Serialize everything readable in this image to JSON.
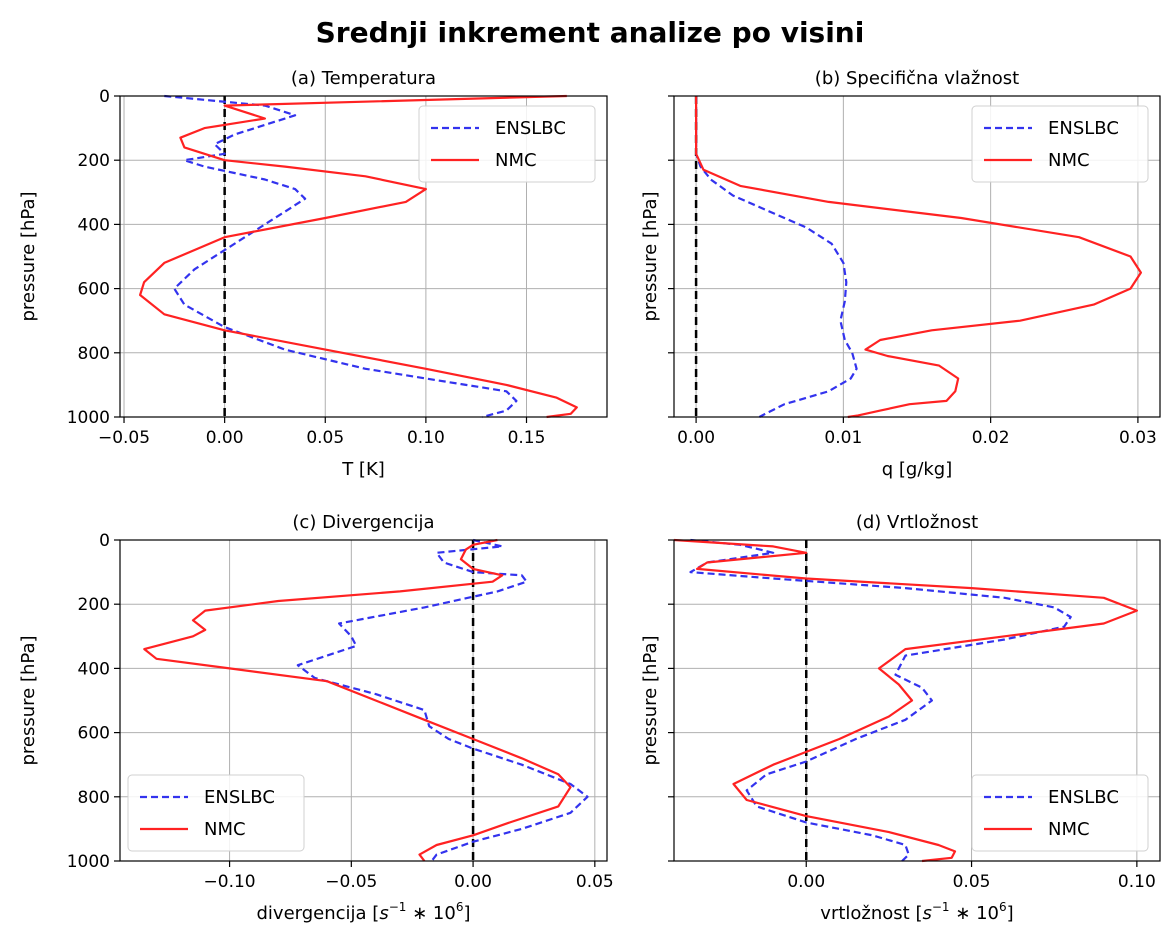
{
  "title": "Srednji inkrement analize po visini",
  "colors": {
    "ENSLBC": "#3333ee",
    "NMC": "#ff2222"
  },
  "chart_data": [
    {
      "type": "line",
      "title": "(a) Temperatura",
      "xlabel": "T [K]",
      "ylabel": "pressure [hPa]",
      "xlim": [
        -0.052,
        0.19
      ],
      "ylim": [
        1000,
        0
      ],
      "y_inverted": true,
      "xticks": [
        -0.05,
        0.0,
        0.05,
        0.1,
        0.15
      ],
      "xtick_labels": [
        "−0.05",
        "0.00",
        "0.05",
        "0.10",
        "0.15"
      ],
      "yticks": [
        0,
        200,
        400,
        600,
        800,
        1000
      ],
      "ytick_labels": [
        "0",
        "200",
        "400",
        "600",
        "800",
        "1000"
      ],
      "show_ytick_labels": true,
      "grid": true,
      "legend": "upper right",
      "zero_line": true,
      "series": [
        {
          "name": "ENSLBC",
          "style": "dashed",
          "x": [
            -0.03,
            0.02,
            0.035,
            0.02,
            0.005,
            -0.005,
            0.0,
            -0.02,
            -0.01,
            0.02,
            0.035,
            0.04,
            0.03,
            0.015,
            0.0,
            -0.015,
            -0.025,
            -0.02,
            0.0,
            0.03,
            0.07,
            0.11,
            0.14,
            0.145,
            0.14,
            0.128
          ],
          "y": [
            0,
            30,
            60,
            90,
            120,
            150,
            180,
            200,
            220,
            260,
            290,
            320,
            360,
            420,
            480,
            540,
            600,
            650,
            720,
            790,
            850,
            890,
            920,
            950,
            980,
            1000
          ]
        },
        {
          "name": "NMC",
          "style": "solid",
          "x": [
            0.17,
            0.0,
            0.02,
            -0.01,
            -0.022,
            -0.02,
            0.0,
            0.03,
            0.07,
            0.1,
            0.09,
            0.05,
            0.0,
            -0.03,
            -0.04,
            -0.042,
            -0.03,
            0.0,
            0.05,
            0.1,
            0.14,
            0.165,
            0.175,
            0.172,
            0.16
          ],
          "y": [
            0,
            30,
            70,
            100,
            130,
            160,
            200,
            220,
            250,
            290,
            330,
            380,
            440,
            520,
            580,
            620,
            680,
            730,
            790,
            850,
            900,
            940,
            970,
            990,
            1000
          ]
        }
      ]
    },
    {
      "type": "line",
      "title": "(b) Specifična vlažnost",
      "xlabel": "q [g/kg]",
      "ylabel": "pressure [hPa]",
      "xlim": [
        -0.0015,
        0.0315
      ],
      "ylim": [
        1000,
        0
      ],
      "y_inverted": true,
      "xticks": [
        0.0,
        0.01,
        0.02,
        0.03
      ],
      "xtick_labels": [
        "0.00",
        "0.01",
        "0.02",
        "0.03"
      ],
      "yticks": [
        0,
        200,
        400,
        600,
        800,
        1000
      ],
      "ytick_labels": [
        "0",
        "200",
        "400",
        "600",
        "800",
        "1000"
      ],
      "show_ytick_labels": false,
      "grid": true,
      "legend": "upper right",
      "zero_line": true,
      "series": [
        {
          "name": "ENSLBC",
          "style": "dashed",
          "x": [
            0.0,
            0.0,
            0.0003,
            0.001,
            0.0025,
            0.005,
            0.0075,
            0.0092,
            0.01,
            0.0102,
            0.0101,
            0.0098,
            0.0101,
            0.0106,
            0.0109,
            0.0105,
            0.009,
            0.006,
            0.0047,
            0.0043
          ],
          "y": [
            0,
            180,
            220,
            260,
            310,
            360,
            410,
            460,
            520,
            580,
            640,
            700,
            760,
            800,
            850,
            880,
            920,
            960,
            990,
            1000
          ]
        },
        {
          "name": "NMC",
          "style": "solid",
          "x": [
            0.0,
            0.0,
            0.0005,
            0.003,
            0.009,
            0.018,
            0.026,
            0.0295,
            0.0302,
            0.0295,
            0.027,
            0.022,
            0.016,
            0.0125,
            0.0115,
            0.013,
            0.0165,
            0.0178,
            0.0176,
            0.017,
            0.0145,
            0.0125,
            0.011,
            0.0103
          ],
          "y": [
            0,
            180,
            230,
            280,
            330,
            380,
            440,
            500,
            550,
            600,
            650,
            700,
            730,
            760,
            790,
            810,
            840,
            880,
            920,
            950,
            960,
            980,
            995,
            1000
          ]
        }
      ]
    },
    {
      "type": "line",
      "title": "(c) Divergencija",
      "xlabel": "divergencija [s⁻¹ * 10⁶]",
      "ylabel": "pressure [hPa]",
      "xlim": [
        -0.145,
        0.055
      ],
      "ylim": [
        1000,
        0
      ],
      "y_inverted": true,
      "xticks": [
        -0.1,
        -0.05,
        0.0,
        0.05
      ],
      "xtick_labels": [
        "−0.10",
        "−0.05",
        "0.00",
        "0.05"
      ],
      "yticks": [
        0,
        200,
        400,
        600,
        800,
        1000
      ],
      "ytick_labels": [
        "0",
        "200",
        "400",
        "600",
        "800",
        "1000"
      ],
      "show_ytick_labels": true,
      "grid": true,
      "legend": "lower left",
      "zero_line": true,
      "series": [
        {
          "name": "ENSLBC",
          "style": "dashed",
          "x": [
            0.0,
            0.012,
            -0.015,
            -0.012,
            0.0,
            0.02,
            0.022,
            0.01,
            -0.02,
            -0.055,
            -0.05,
            -0.048,
            -0.06,
            -0.072,
            -0.065,
            -0.04,
            -0.02,
            -0.018,
            -0.01,
            0.0,
            0.02,
            0.04,
            0.047,
            0.04,
            0.02,
            0.0,
            -0.015,
            -0.017
          ],
          "y": [
            0,
            20,
            40,
            70,
            100,
            110,
            130,
            160,
            210,
            260,
            300,
            330,
            360,
            390,
            430,
            480,
            530,
            580,
            620,
            650,
            700,
            760,
            800,
            850,
            900,
            940,
            980,
            1000
          ]
        },
        {
          "name": "NMC",
          "style": "solid",
          "x": [
            0.01,
            0.0,
            -0.003,
            -0.005,
            0.0,
            0.012,
            0.008,
            -0.03,
            -0.08,
            -0.11,
            -0.115,
            -0.11,
            -0.115,
            -0.125,
            -0.135,
            -0.13,
            -0.1,
            -0.06,
            -0.04,
            -0.02,
            0.0,
            0.02,
            0.035,
            0.04,
            0.035,
            0.015,
            0.0,
            -0.015,
            -0.022,
            -0.02
          ],
          "y": [
            0,
            15,
            30,
            60,
            90,
            110,
            130,
            160,
            190,
            220,
            250,
            280,
            300,
            320,
            340,
            370,
            400,
            440,
            500,
            560,
            620,
            680,
            730,
            770,
            830,
            880,
            920,
            950,
            980,
            1000
          ]
        }
      ]
    },
    {
      "type": "line",
      "title": "(d) Vrtložnost",
      "xlabel": "vrtložnost [s⁻¹ * 10⁶]",
      "ylabel": "pressure [hPa]",
      "xlim": [
        -0.04,
        0.107
      ],
      "ylim": [
        1000,
        0
      ],
      "y_inverted": true,
      "xticks": [
        0.0,
        0.05,
        0.1
      ],
      "xtick_labels": [
        "0.00",
        "0.05",
        "0.10"
      ],
      "yticks": [
        0,
        200,
        400,
        600,
        800,
        1000
      ],
      "ytick_labels": [
        "0",
        "200",
        "400",
        "600",
        "800",
        "1000"
      ],
      "show_ytick_labels": false,
      "grid": true,
      "legend": "lower right",
      "zero_line": true,
      "series": [
        {
          "name": "ENSLBC",
          "style": "dashed",
          "x": [
            -0.035,
            -0.02,
            -0.01,
            -0.03,
            -0.035,
            -0.01,
            0.03,
            0.06,
            0.075,
            0.08,
            0.078,
            0.06,
            0.03,
            0.027,
            0.035,
            0.038,
            0.03,
            0.015,
            0.0,
            -0.012,
            -0.018,
            -0.015,
            0.0,
            0.02,
            0.03,
            0.031,
            0.029
          ],
          "y": [
            0,
            15,
            40,
            70,
            100,
            120,
            150,
            180,
            210,
            240,
            270,
            310,
            360,
            420,
            460,
            500,
            560,
            620,
            690,
            730,
            780,
            830,
            880,
            920,
            950,
            980,
            1000
          ]
        },
        {
          "name": "NMC",
          "style": "solid",
          "x": [
            -0.04,
            -0.01,
            0.0,
            -0.03,
            -0.033,
            0.0,
            0.05,
            0.09,
            0.1,
            0.09,
            0.06,
            0.03,
            0.022,
            0.028,
            0.032,
            0.025,
            0.01,
            -0.01,
            -0.022,
            -0.018,
            0.0,
            0.025,
            0.04,
            0.045,
            0.044,
            0.035
          ],
          "y": [
            0,
            20,
            40,
            70,
            90,
            120,
            150,
            180,
            220,
            260,
            300,
            340,
            400,
            450,
            500,
            550,
            620,
            700,
            760,
            810,
            860,
            910,
            950,
            970,
            990,
            1000
          ]
        }
      ]
    }
  ]
}
